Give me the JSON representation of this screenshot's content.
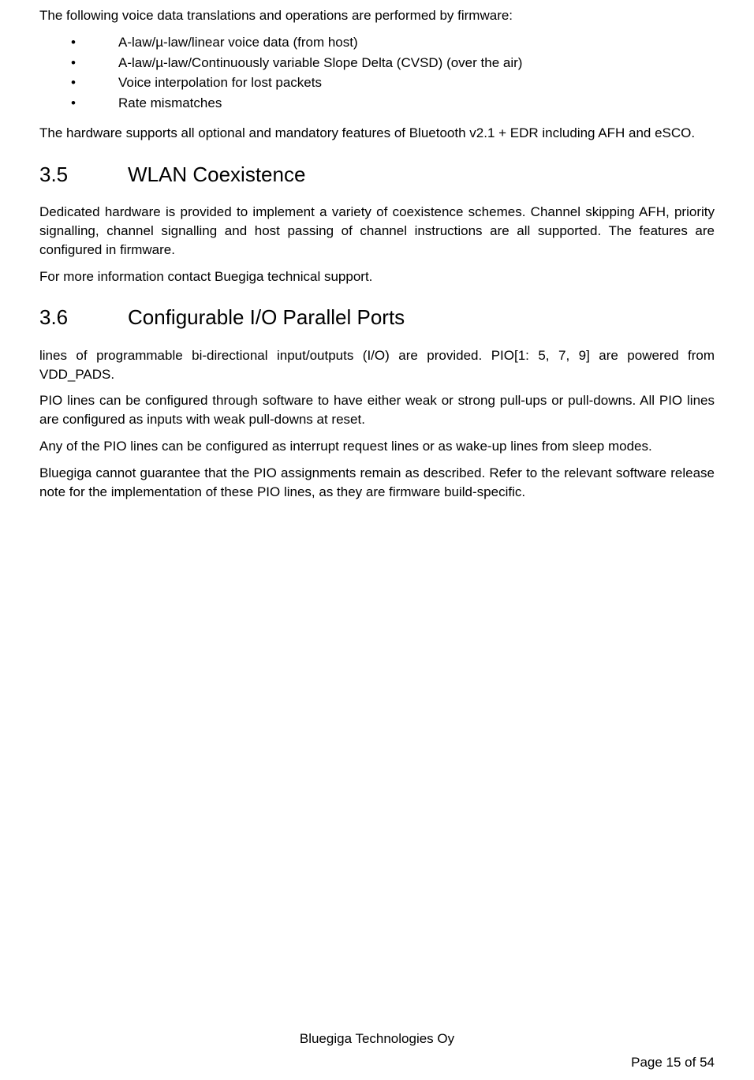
{
  "intro_para": "The following voice data translations and operations are performed by firmware:",
  "bullets": [
    "A-law/µ-law/linear voice data (from host)",
    "A-law/µ-law/Continuously variable Slope Delta (CVSD) (over the air)",
    "Voice interpolation for lost packets",
    "Rate mismatches"
  ],
  "para_after_bullets": "The hardware supports all optional and mandatory features of Bluetooth v2.1 + EDR including AFH and eSCO.",
  "section_3_5": {
    "num": "3.5",
    "title": "WLAN Coexistence",
    "para1": "Dedicated hardware is provided to implement a variety of coexistence schemes. Channel skipping AFH, priority signalling, channel signalling and host passing of channel instructions are all supported. The features are configured in firmware.",
    "para2": "For more information contact Buegiga technical support."
  },
  "section_3_6": {
    "num": "3.6",
    "title": "Configurable I/O Parallel Ports",
    "para1": "lines of programmable bi-directional input/outputs (I/O) are provided. PIO[1: 5, 7, 9] are powered from VDD_PADS.",
    "para2": "PIO lines can be configured through software to have either weak or strong pull-ups or pull-downs. All PIO lines are configured as inputs with weak pull-downs at reset.",
    "para3": "Any of the PIO lines can be configured as interrupt request lines or as wake-up lines from sleep modes.",
    "para4": "Bluegiga cannot guarantee that the PIO assignments remain as described. Refer to the relevant software release note for the implementation of these PIO lines, as they are firmware build-specific."
  },
  "footer": "Bluegiga Technologies Oy",
  "page_number": "Page 15 of 54"
}
